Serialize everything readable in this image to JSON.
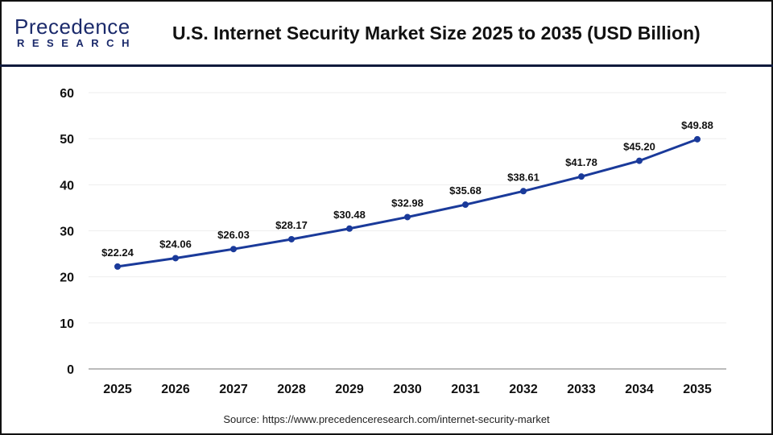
{
  "header": {
    "logo_top": "Precedence",
    "logo_bottom": "RESEARCH",
    "title": "U.S. Internet Security Market Size 2025 to 2035 (USD Billion)"
  },
  "source": "Source: https://www.precedenceresearch.com/internet-security-market",
  "chart_data": {
    "type": "line",
    "title": "U.S. Internet Security Market Size 2025 to 2035 (USD Billion)",
    "categories": [
      "2025",
      "2026",
      "2027",
      "2028",
      "2029",
      "2030",
      "2031",
      "2032",
      "2033",
      "2034",
      "2035"
    ],
    "values": [
      22.24,
      24.06,
      26.03,
      28.17,
      30.48,
      32.98,
      35.68,
      38.61,
      41.78,
      45.2,
      49.88
    ],
    "data_labels": [
      "$22.24",
      "$24.06",
      "$26.03",
      "$28.17",
      "$30.48",
      "$32.98",
      "$35.68",
      "$38.61",
      "$41.78",
      "$45.20",
      "$49.88"
    ],
    "ylim": [
      0,
      60
    ],
    "yticks": [
      "0",
      "10",
      "20",
      "30",
      "40",
      "50",
      "60"
    ],
    "grid": true,
    "line_color": "#1a3a9a"
  }
}
